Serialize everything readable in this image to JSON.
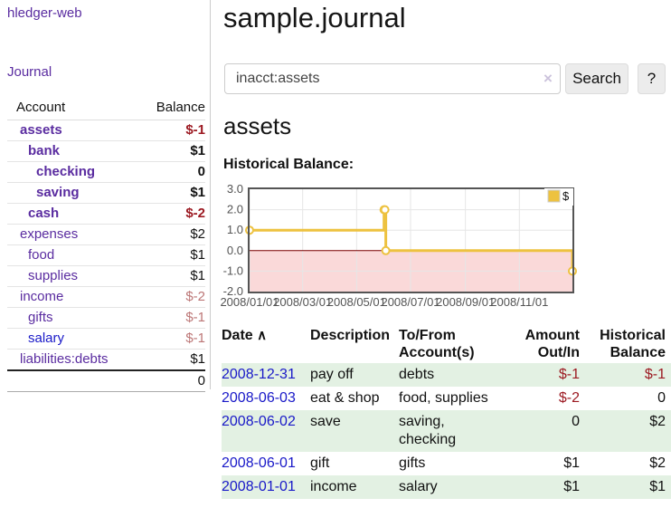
{
  "sidebar": {
    "app_title": "hledger-web",
    "journal_label": "Journal",
    "accounts_table": {
      "headers": {
        "account": "Account",
        "balance": "Balance"
      },
      "rows": [
        {
          "account": "assets",
          "balance": "$-1"
        },
        {
          "account": "bank",
          "balance": "$1"
        },
        {
          "account": "checking",
          "balance": "0"
        },
        {
          "account": "saving",
          "balance": "$1"
        },
        {
          "account": "cash",
          "balance": "$-2"
        },
        {
          "account": "expenses",
          "balance": "$2"
        },
        {
          "account": "food",
          "balance": "$1"
        },
        {
          "account": "supplies",
          "balance": "$1"
        },
        {
          "account": "income",
          "balance": "$-2"
        },
        {
          "account": "gifts",
          "balance": "$-1"
        },
        {
          "account": "salary",
          "balance": "$-1"
        },
        {
          "account": "liabilities:debts",
          "balance": "$1"
        }
      ],
      "total": "0"
    }
  },
  "main": {
    "page_title": "sample.journal",
    "search": {
      "value": "inacct:assets",
      "clear_icon": "×",
      "button_label": "Search",
      "help_label": "?"
    },
    "account_heading": "assets",
    "chart_label": "Historical Balance:",
    "table": {
      "headers": {
        "date": "Date",
        "sort_icon": "∧",
        "description": "Description",
        "accounts": "To/From Account(s)",
        "amount": "Amount Out/In",
        "balance": "Historical Balance"
      },
      "rows": [
        {
          "date": "2008-12-31",
          "description": "pay off",
          "accounts": "debts",
          "amount": "$-1",
          "balance": "$-1"
        },
        {
          "date": "2008-06-03",
          "description": "eat & shop",
          "accounts": "food, supplies",
          "amount": "$-2",
          "balance": "0"
        },
        {
          "date": "2008-06-02",
          "description": "save",
          "accounts": "saving, checking",
          "amount": "0",
          "balance": "$2"
        },
        {
          "date": "2008-06-01",
          "description": "gift",
          "accounts": "gifts",
          "amount": "$1",
          "balance": "$2"
        },
        {
          "date": "2008-01-01",
          "description": "income",
          "accounts": "salary",
          "amount": "$1",
          "balance": "$1"
        }
      ]
    }
  },
  "chart_data": {
    "type": "line",
    "step": true,
    "title": "Historical Balance",
    "series": [
      {
        "name": "$",
        "points": [
          {
            "date": "2008-01-01",
            "value": 1
          },
          {
            "date": "2008-06-01",
            "value": 2
          },
          {
            "date": "2008-06-02",
            "value": 2
          },
          {
            "date": "2008-06-03",
            "value": 0
          },
          {
            "date": "2008-12-31",
            "value": -1
          }
        ]
      }
    ],
    "xlim": [
      "2008-01-01",
      "2008-12-31"
    ],
    "ylim": [
      -2,
      3
    ],
    "x_tick_dates": [
      "2008-01-01",
      "2008-03-01",
      "2008-05-01",
      "2008-07-01",
      "2008-09-01",
      "2008-11-01"
    ],
    "x_tick_labels": [
      "2008/01/01",
      "2008/03/01",
      "2008/05/01",
      "2008/07/01",
      "2008/09/01",
      "2008/11/01"
    ],
    "y_tick_values": [
      3,
      2,
      1,
      0,
      -1,
      -2
    ],
    "y_tick_labels": [
      "3.0",
      "2.0",
      "1.0",
      "0.0",
      "-1.0",
      "-2.0"
    ],
    "legend": {
      "label": "$",
      "position": "top-right"
    },
    "grid": true,
    "colors": {
      "line": "#EDC240",
      "negative_region": "#FAD9D9",
      "zero_line": "#7A0000",
      "grid": "#E6E6E6",
      "border": "#545454",
      "tick_text": "#545454"
    }
  }
}
